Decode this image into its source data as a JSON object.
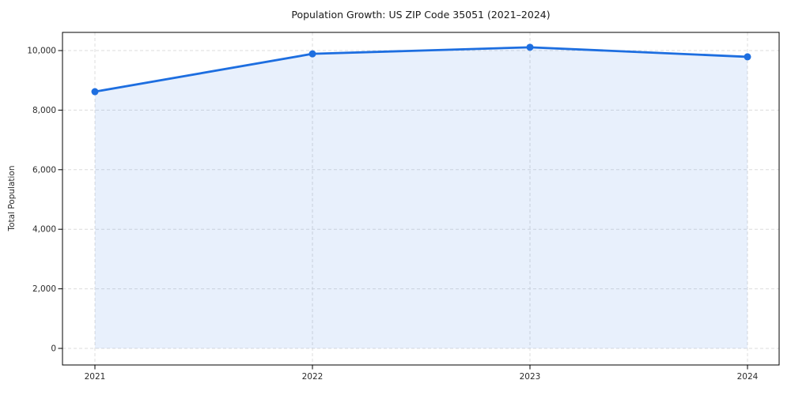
{
  "chart_data": {
    "type": "line",
    "title": "Population Growth: US ZIP Code 35051 (2021–2024)",
    "xlabel": "",
    "ylabel": "Total Population",
    "categories": [
      "2021",
      "2022",
      "2023",
      "2024"
    ],
    "series": [
      {
        "name": "Total Population",
        "values": [
          8620,
          9890,
          10110,
          9790
        ]
      }
    ],
    "ylim": [
      0,
      10000
    ],
    "yticks": [
      0,
      2000,
      4000,
      6000,
      8000,
      10000
    ],
    "ytick_labels": [
      "0",
      "2,000",
      "4,000",
      "6,000",
      "8,000",
      "10,000"
    ],
    "grid": true,
    "grid_style": "dashed",
    "legend_position": "none",
    "area_fill": true,
    "marker": "circle",
    "colors": {
      "line": "#1d6ee0",
      "marker": "#1d6ee0",
      "area_fill": "rgba(29,110,224,0.10)",
      "grid": "#dcdcdc",
      "frame": "#000000",
      "title_text": "#1a1a1a",
      "tick_text": "#2b2b2b",
      "background": "#ffffff"
    }
  }
}
